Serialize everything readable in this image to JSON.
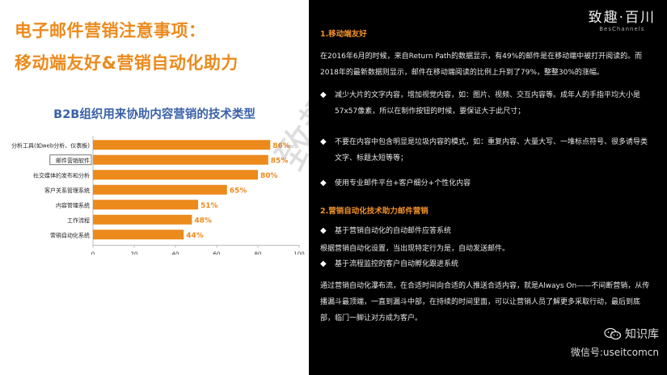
{
  "left": {
    "title_line1": "电子邮件营销注意事项：",
    "title_line2": "移动端友好&营销自动化助力"
  },
  "chart_data": {
    "type": "bar",
    "orientation": "horizontal",
    "title": "B2B组织用来协助内容营销的技术类型",
    "categories": [
      "分析工具(如web分析、仪表板)",
      "邮件营销软件",
      "社交媒体的发布和分析",
      "客户关系管理系统",
      "内容管理系统",
      "工作流程",
      "营销自动化系统"
    ],
    "values": [
      86,
      85,
      80,
      65,
      51,
      48,
      44
    ],
    "value_labels": [
      "86%",
      "85%",
      "80%",
      "65%",
      "51%",
      "48%",
      "44%"
    ],
    "xlim": [
      0,
      100
    ],
    "xticks": [
      "0",
      "20",
      "40",
      "60",
      "80",
      "100"
    ],
    "highlighted_category": "邮件营销软件",
    "bar_color": "#ec8a1c",
    "label_color": "#ec8a1c"
  },
  "brand": {
    "name": "致趣·百川",
    "sub": "BesChannels"
  },
  "right": {
    "section1": "1.移动端友好",
    "para1": "在2016年6月的时候，来自Return Path的数据显示，有49%的邮件是在移动端中被打开阅读的。而2018年的最新数据则显示，邮件在移动端阅读的比例上升到了79%，整整30%的涨幅。",
    "bullet1": "减少大片的文字内容，增加视觉内容，如：图片、视频、交互内容等。成年人的手指平均大小是57x57像素，所以在制作按钮的时候，要保证大于此尺寸；",
    "bullet2": "不要在内容中包含明显是垃圾内容的模式，如：重复内容、大量大写、一堆标点符号、很多诱导类文字、标题太短等等；",
    "bullet3": "使用专业邮件平台+客户细分+个性化内容",
    "section2": "2.营销自动化技术助力邮件营销",
    "bullet4": "基于营销自动化的自动邮件应答系统",
    "para2": "根据营销自动化设置，当出现特定行为是，自动发送邮件。",
    "bullet5": "基于流程监控的客户自动孵化跟进系统",
    "para3": "通过营销自动化瀑布流，在合适时间向合适的人推送合适内容，就是Always On——不间断营销，从传播漏斗最顶端，一直到漏斗中部，在持续的时间里面，可以让营销人员了解更多采取行动，最后到底部，临门一脚让对方成为客户。"
  },
  "wechat": {
    "name": "知识库",
    "id": "微信号:useitcomcn"
  },
  "watermark": "致趣百川",
  "bullet_symbol": "◆"
}
